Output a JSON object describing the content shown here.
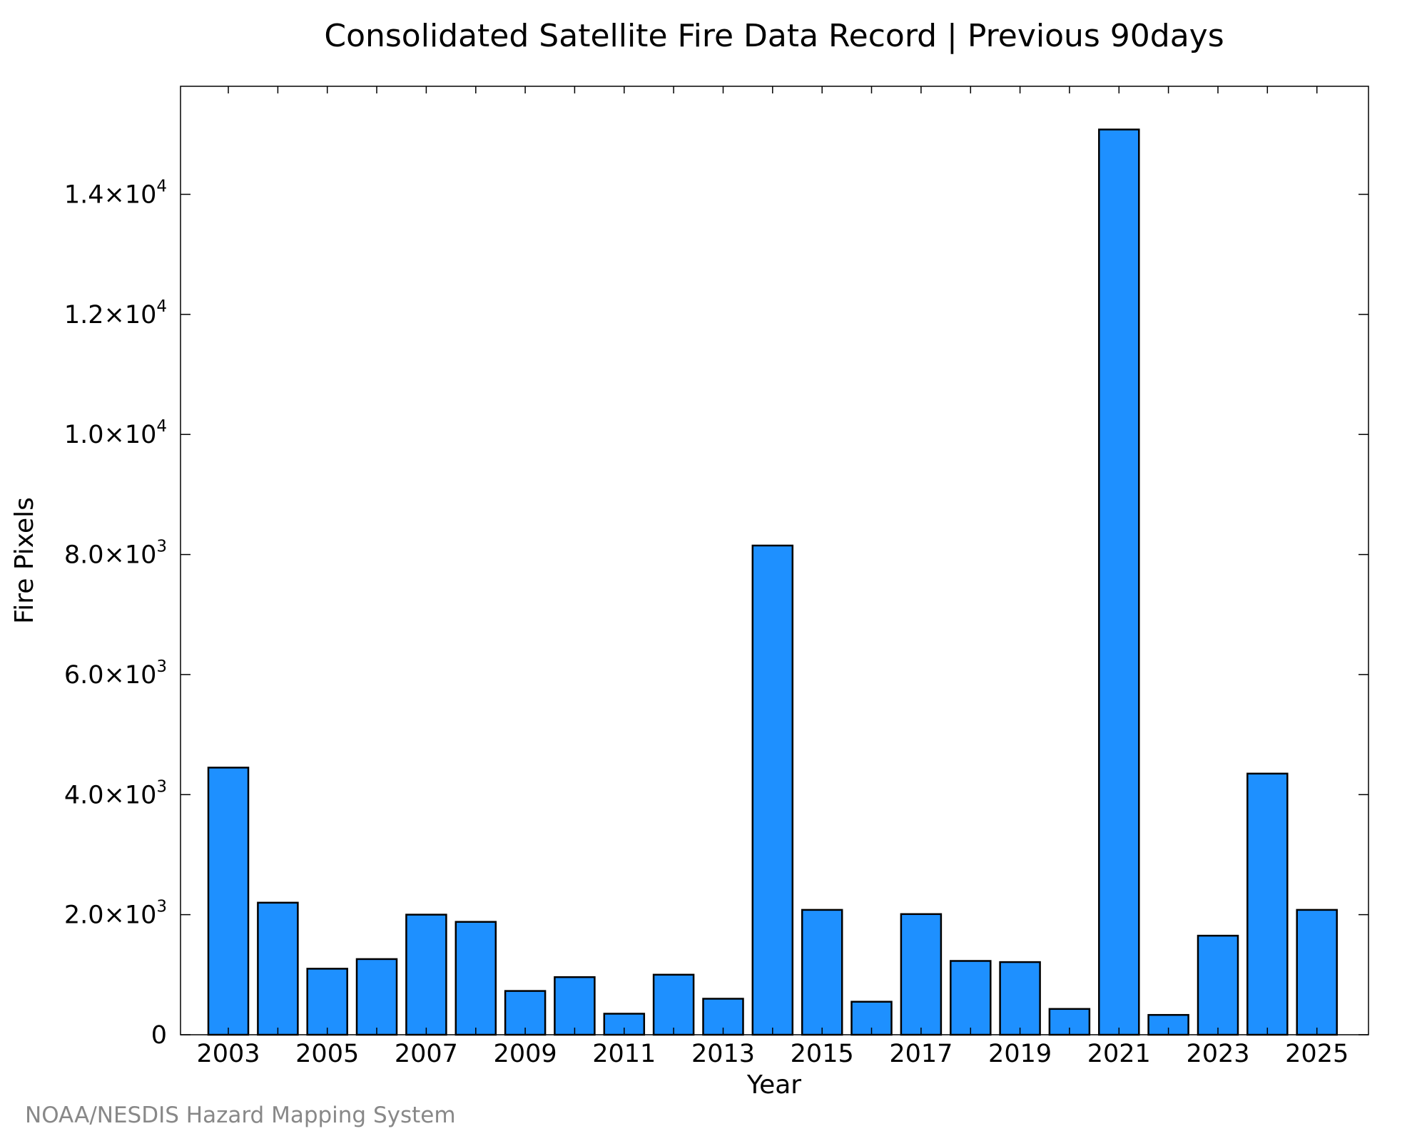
{
  "chart_data": {
    "type": "bar",
    "title": "Consolidated Satellite Fire Data Record | Previous 90days",
    "xlabel": "Year",
    "ylabel": "Fire Pixels",
    "categories": [
      "2003",
      "2004",
      "2005",
      "2006",
      "2007",
      "2008",
      "2009",
      "2010",
      "2011",
      "2012",
      "2013",
      "2014",
      "2015",
      "2016",
      "2017",
      "2018",
      "2019",
      "2020",
      "2021",
      "2022",
      "2023",
      "2024",
      "2025"
    ],
    "values": [
      4450,
      2200,
      1100,
      1260,
      2000,
      1880,
      730,
      960,
      350,
      1000,
      600,
      8150,
      2080,
      550,
      2010,
      1230,
      1210,
      430,
      15080,
      330,
      1650,
      4350,
      2080
    ],
    "x_tick_labels": [
      "2003",
      "2005",
      "2007",
      "2009",
      "2011",
      "2013",
      "2015",
      "2017",
      "2019",
      "2021",
      "2023",
      "2025"
    ],
    "y_ticks": [
      {
        "value": 0,
        "mantissa": "0",
        "exponent": ""
      },
      {
        "value": 2000,
        "mantissa": "2.0×10",
        "exponent": "3"
      },
      {
        "value": 4000,
        "mantissa": "4.0×10",
        "exponent": "3"
      },
      {
        "value": 6000,
        "mantissa": "6.0×10",
        "exponent": "3"
      },
      {
        "value": 8000,
        "mantissa": "8.0×10",
        "exponent": "3"
      },
      {
        "value": 10000,
        "mantissa": "1.0×10",
        "exponent": "4"
      },
      {
        "value": 12000,
        "mantissa": "1.2×10",
        "exponent": "4"
      },
      {
        "value": 14000,
        "mantissa": "1.4×10",
        "exponent": "4"
      }
    ],
    "ylim": [
      0,
      15800
    ],
    "bar_color": "#1e90ff",
    "bar_edge_color": "#000000",
    "grid": false,
    "legend": "none"
  },
  "credit": "NOAA/NESDIS Hazard Mapping System"
}
